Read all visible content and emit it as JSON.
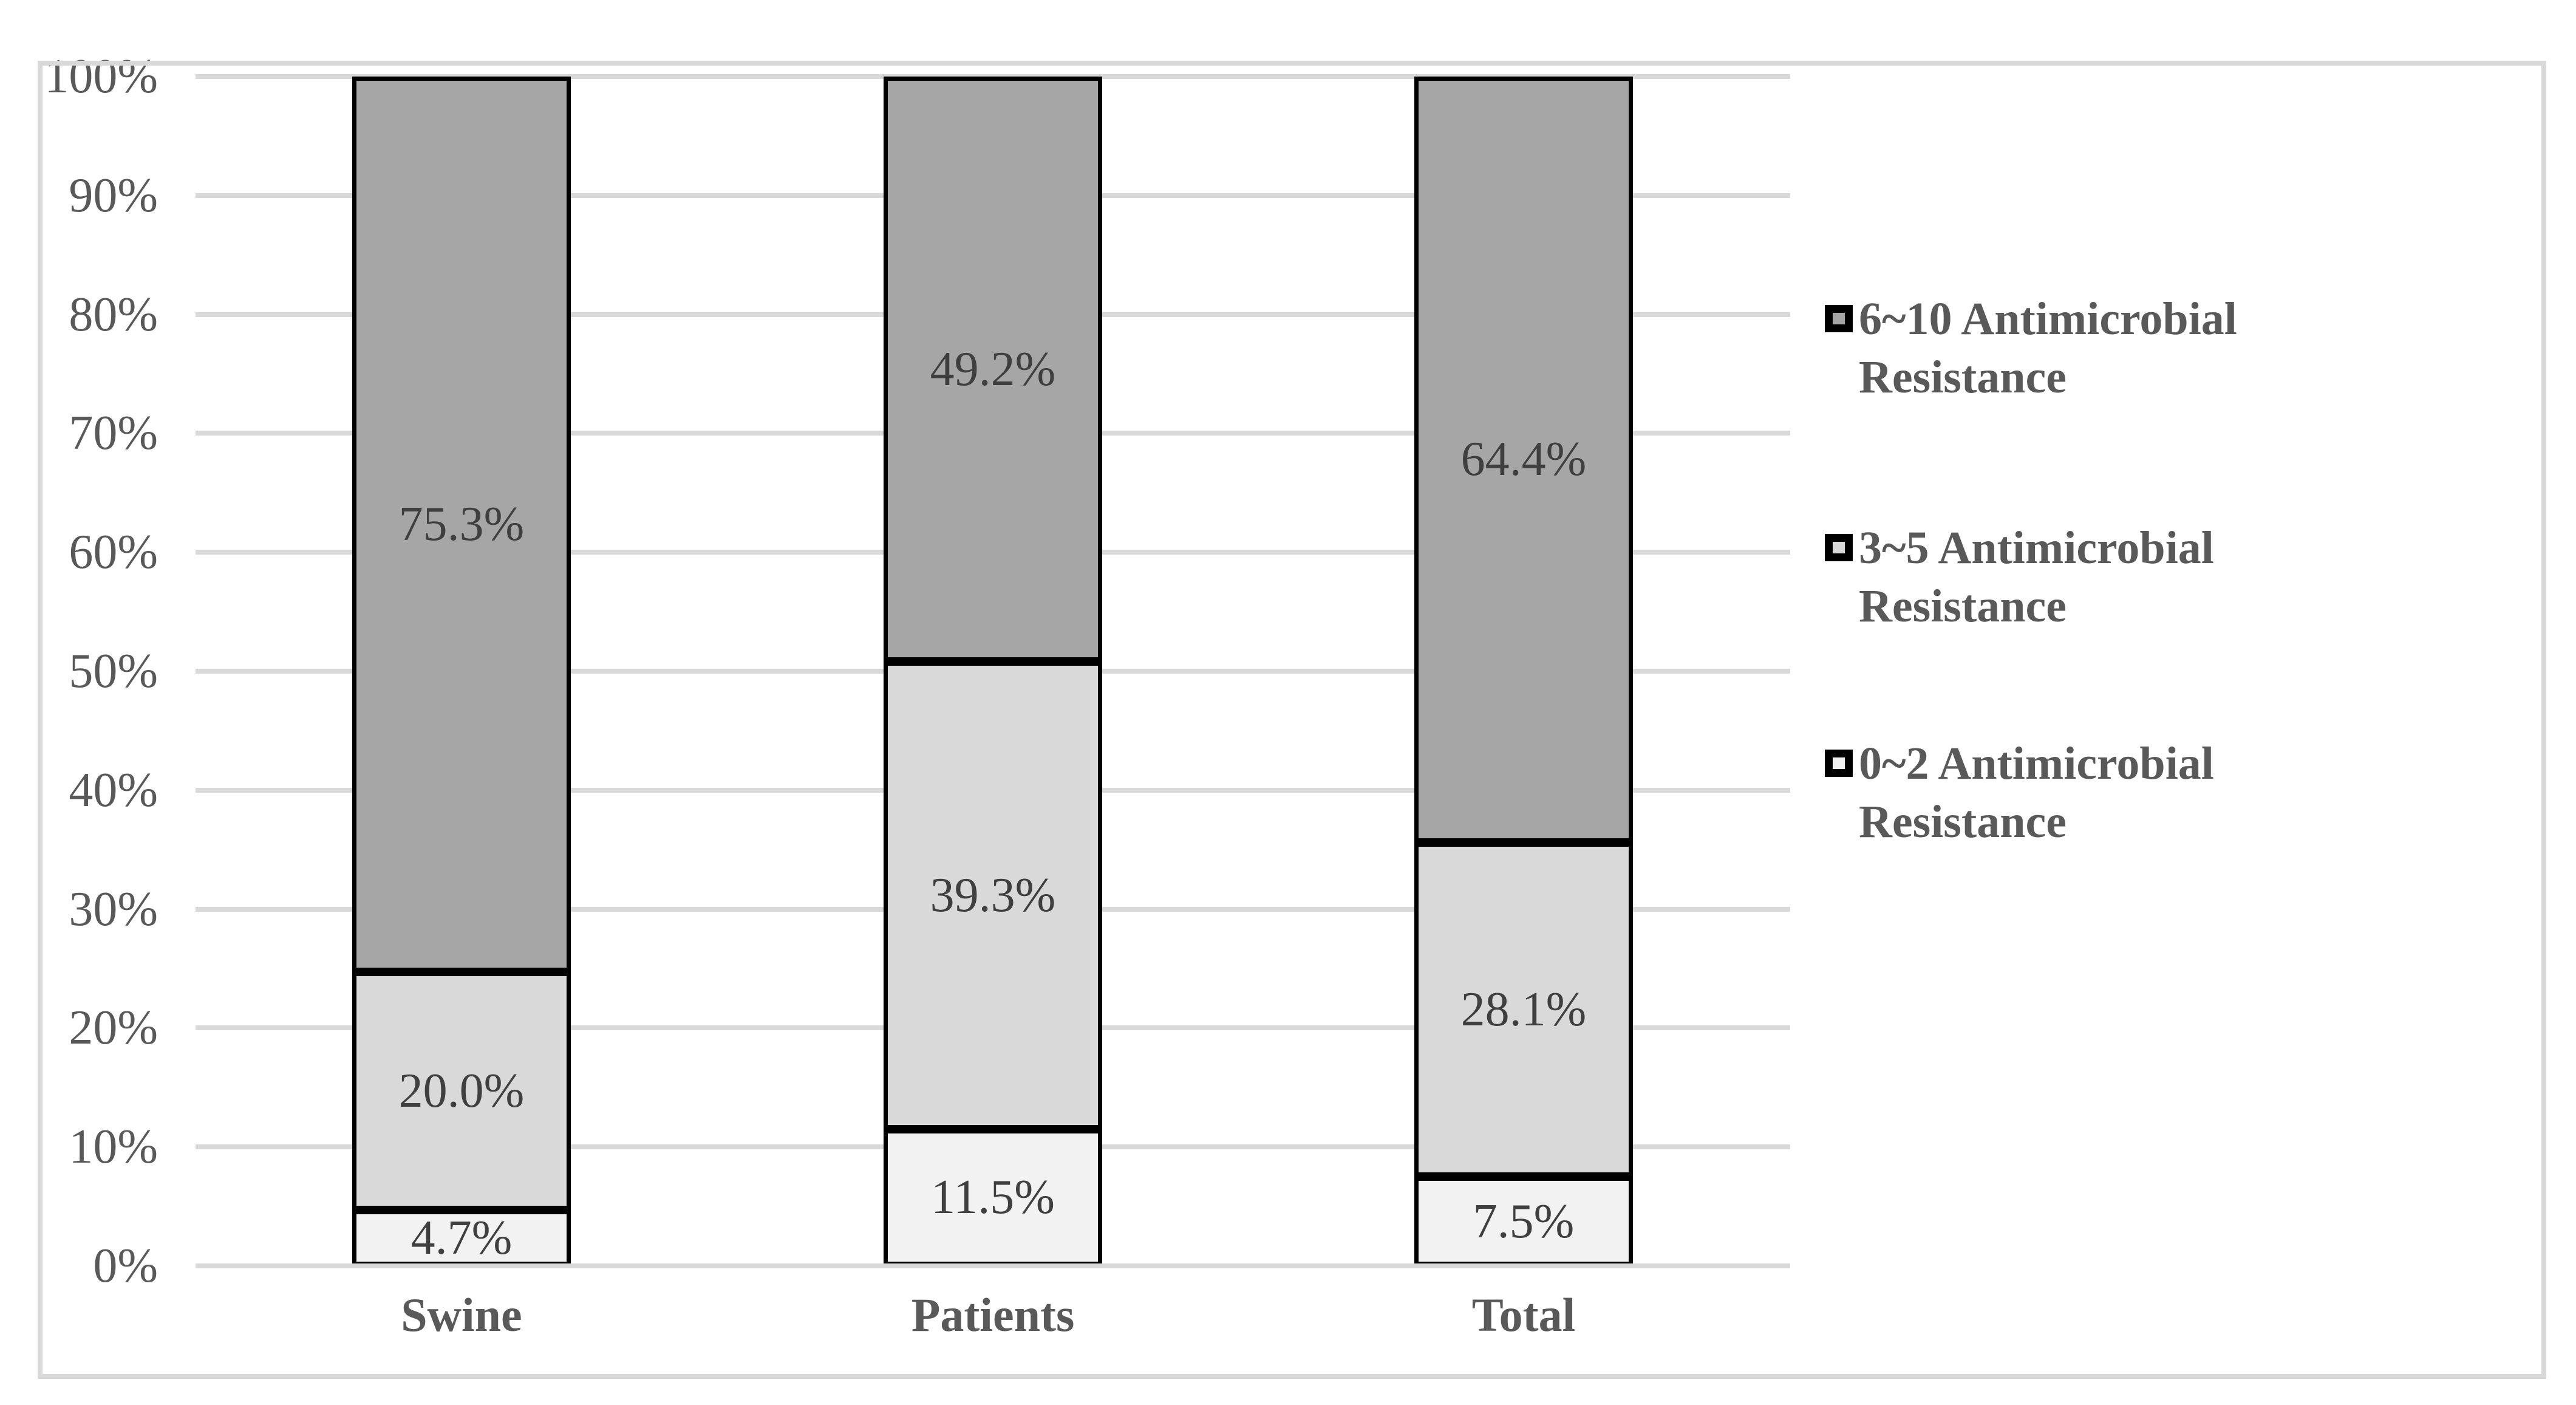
{
  "chart_data": {
    "type": "bar",
    "subtype": "stacked-100-percent",
    "title": "",
    "categories": [
      "Swine",
      "Patients",
      "Total"
    ],
    "series": [
      {
        "name": "0~2 Antimicrobial Resistance",
        "legend_lines": [
          "0~2 Antimicrobial",
          "Resistance"
        ],
        "color": "#f2f2f2",
        "values": [
          4.7,
          11.5,
          7.5
        ],
        "data_labels": [
          "4.7%",
          "11.5%",
          "7.5%"
        ]
      },
      {
        "name": "3~5 Antimicrobial Resistance",
        "legend_lines": [
          "3~5 Antimicrobial",
          "Resistance"
        ],
        "color": "#d9d9d9",
        "values": [
          20.0,
          39.3,
          28.1
        ],
        "data_labels": [
          "20.0%",
          "39.3%",
          "28.1%"
        ]
      },
      {
        "name": "6~10 Antimicrobial Resistance",
        "legend_lines": [
          "6~10 Antimicrobial",
          "Resistance"
        ],
        "color": "#a6a6a6",
        "values": [
          75.3,
          49.2,
          64.4
        ],
        "data_labels": [
          "75.3%",
          "49.2%",
          "64.4%"
        ]
      }
    ],
    "stack_order": "bottom-to-top as listed in series",
    "y_axis": {
      "min": 0,
      "max": 100,
      "step": 10,
      "tick_labels": [
        "0%",
        "10%",
        "20%",
        "30%",
        "40%",
        "50%",
        "60%",
        "70%",
        "80%",
        "90%",
        "100%"
      ]
    },
    "x_axis": {
      "tick_labels": [
        "Swine",
        "Patients",
        "Total"
      ]
    },
    "grid": true,
    "legend": {
      "position": "right",
      "order_top_to_bottom": [
        2,
        1,
        0
      ]
    },
    "colors": {
      "grid_line": "#d9d9d9",
      "bar_border": "#000000",
      "data_label_text": "#3f3f3f",
      "axis_text": "#595959",
      "legend_text": "#595959",
      "swatch_border": "#000000",
      "frame_border": "#d9d9d9",
      "background": "#ffffff"
    }
  }
}
